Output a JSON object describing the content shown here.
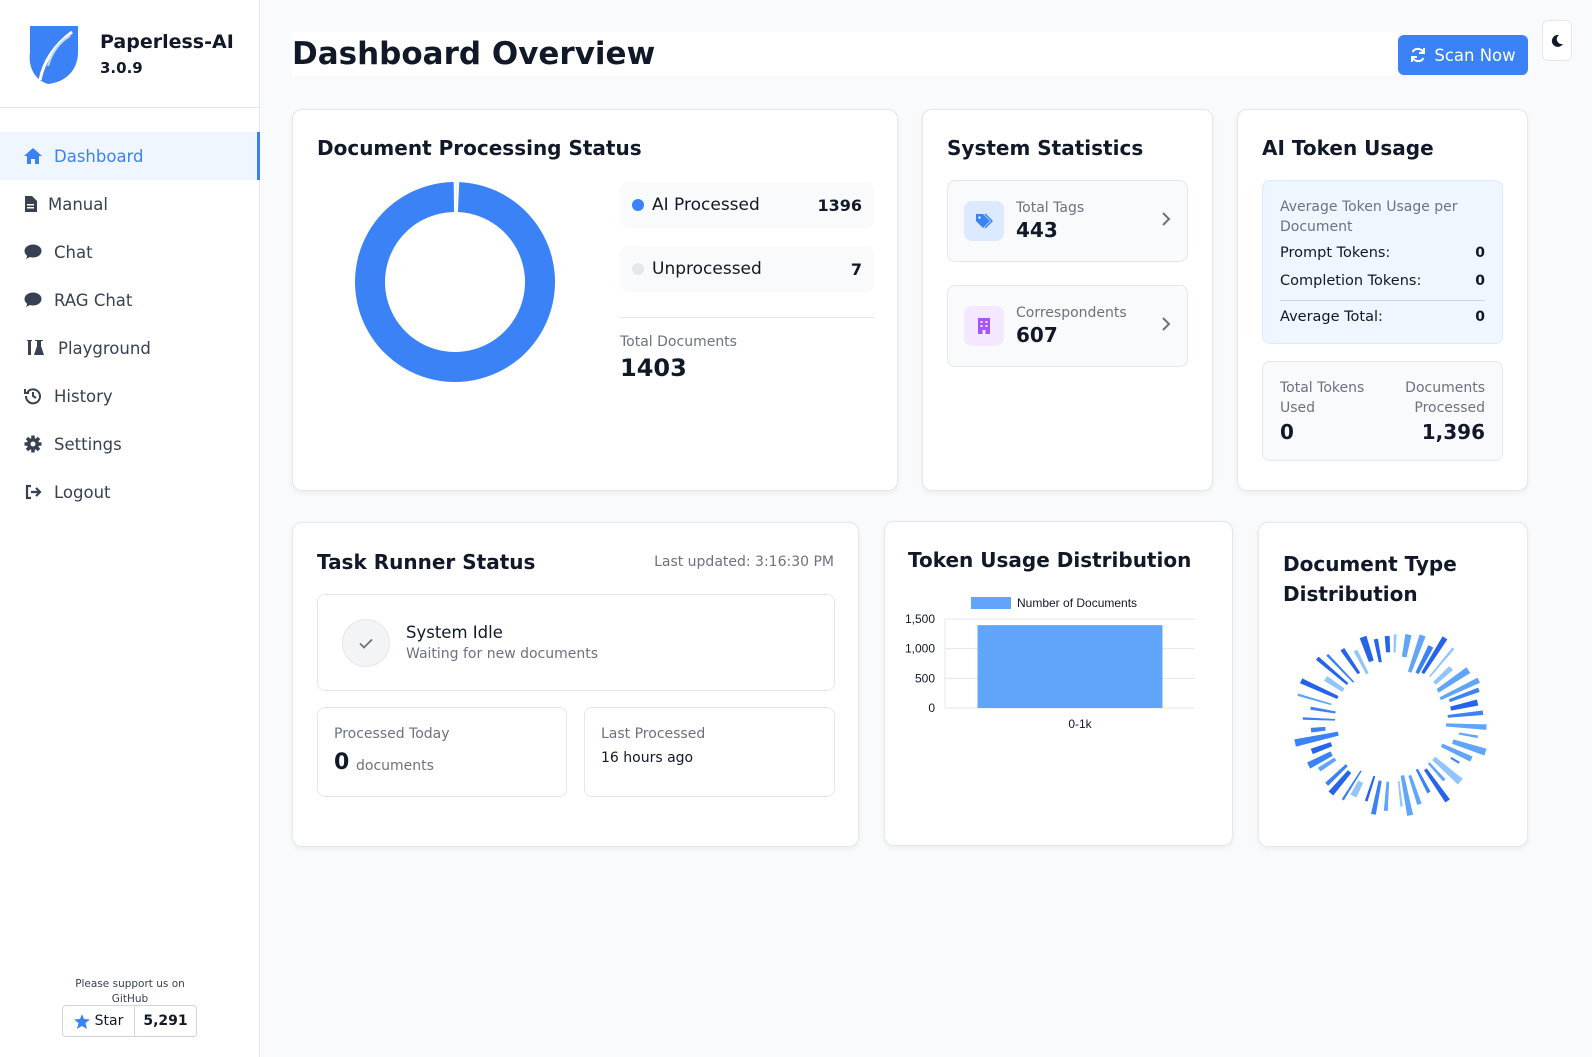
{
  "brand": {
    "name": "Paperless-AI",
    "version": "3.0.9"
  },
  "sidebar": {
    "items": [
      {
        "label": "Dashboard",
        "icon": "home-icon",
        "active": true
      },
      {
        "label": "Manual",
        "icon": "file-icon"
      },
      {
        "label": "Chat",
        "icon": "chat-icon"
      },
      {
        "label": "RAG Chat",
        "icon": "chat-icon"
      },
      {
        "label": "Playground",
        "icon": "flask-icon"
      },
      {
        "label": "History",
        "icon": "history-icon"
      },
      {
        "label": "Settings",
        "icon": "gear-icon"
      },
      {
        "label": "Logout",
        "icon": "logout-icon"
      }
    ],
    "support_text": "Please support us on GitHub",
    "star_label": "Star",
    "star_count": "5,291"
  },
  "header": {
    "title": "Dashboard Overview",
    "scan_button": "Scan Now"
  },
  "processing": {
    "title": "Document Processing Status",
    "ai_processed_label": "AI Processed",
    "ai_processed_value": "1396",
    "unprocessed_label": "Unprocessed",
    "unprocessed_value": "7",
    "total_label": "Total Documents",
    "total_value": "1403"
  },
  "system_stats": {
    "title": "System Statistics",
    "tags_label": "Total Tags",
    "tags_value": "443",
    "correspondents_label": "Correspondents",
    "correspondents_value": "607"
  },
  "token_usage": {
    "title": "AI Token Usage",
    "avg_label": "Average Token Usage per Document",
    "prompt_label": "Prompt Tokens:",
    "prompt_value": "0",
    "completion_label": "Completion Tokens:",
    "completion_value": "0",
    "avg_total_label": "Average Total:",
    "avg_total_value": "0",
    "total_tokens_label": "Total Tokens Used",
    "total_tokens_value": "0",
    "docs_processed_label": "Documents Processed",
    "docs_processed_value": "1,396"
  },
  "task_runner": {
    "title": "Task Runner Status",
    "last_updated": "Last updated: 3:16:30 PM",
    "status_title": "System Idle",
    "status_sub": "Waiting for new documents",
    "processed_today_label": "Processed Today",
    "processed_today_value": "0",
    "processed_today_unit": "documents",
    "last_processed_label": "Last Processed",
    "last_processed_value": "16 hours ago"
  },
  "token_distribution": {
    "title": "Token Usage Distribution"
  },
  "doc_type_distribution": {
    "title": "Document Type Distribution"
  },
  "colors": {
    "accent": "#3b82f6",
    "light_accent": "#60a5fa",
    "grey_dot": "#e5e7eb",
    "purple": "#a855f7"
  },
  "chart_data": [
    {
      "type": "pie",
      "labels": [
        "AI Processed",
        "Unprocessed"
      ],
      "values": [
        1396,
        7
      ],
      "colors": [
        "#3b82f6",
        "#e5e7eb"
      ],
      "donut": true
    },
    {
      "type": "bar",
      "title": "Token Usage Distribution",
      "categories": [
        "0-1k"
      ],
      "series": [
        {
          "name": "Number of Documents",
          "values": [
            1396
          ]
        }
      ],
      "ylim": [
        0,
        1500
      ],
      "yticks": [
        "1,500",
        "1,000",
        "500",
        "0"
      ],
      "legend": "top",
      "grid": true
    }
  ]
}
